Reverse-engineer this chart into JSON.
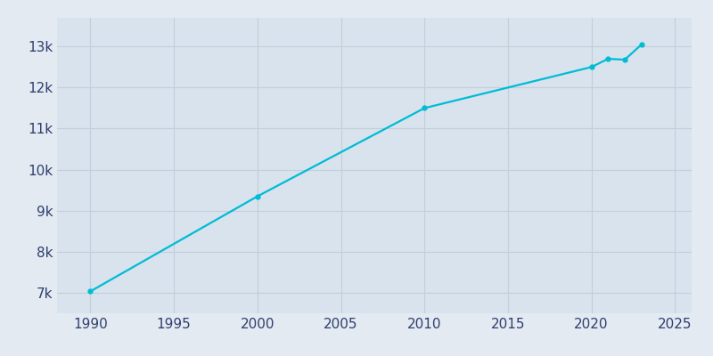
{
  "years": [
    1990,
    2000,
    2010,
    2020,
    2021,
    2022,
    2023
  ],
  "population": [
    7035,
    9350,
    11500,
    12500,
    12700,
    12680,
    13050
  ],
  "line_color": "#00BCD4",
  "bg_color": "#E3EAF2",
  "axes_bg_color": "#D8E3EE",
  "grid_color": "#C2CED9",
  "tick_color": "#2e3f6e",
  "xlim": [
    1988,
    2026
  ],
  "ylim": [
    6500,
    13700
  ],
  "xticks": [
    1990,
    1995,
    2000,
    2005,
    2010,
    2015,
    2020,
    2025
  ],
  "yticks": [
    7000,
    8000,
    9000,
    10000,
    11000,
    12000,
    13000
  ],
  "ytick_labels": [
    "7k",
    "8k",
    "9k",
    "10k",
    "11k",
    "12k",
    "13k"
  ]
}
